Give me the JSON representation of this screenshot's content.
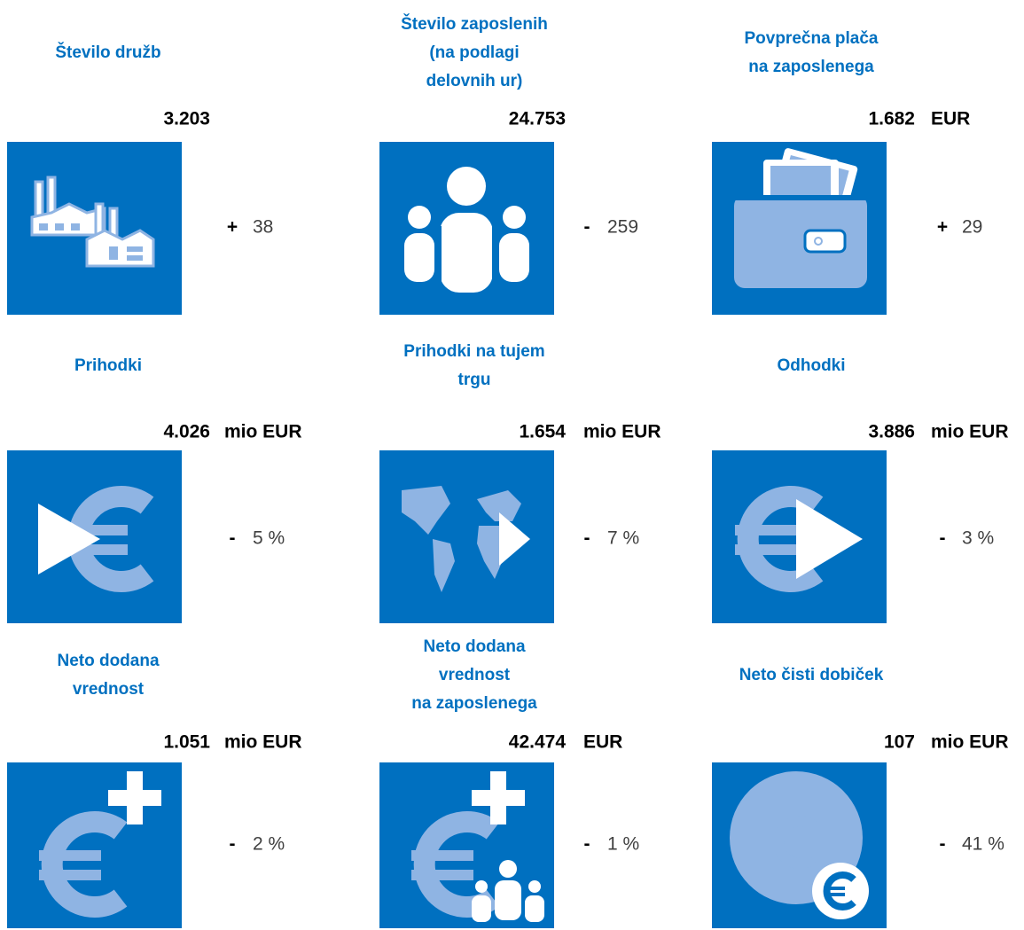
{
  "tiles": [
    {
      "title": [
        "Število družb"
      ],
      "value": "3.203",
      "sign": "+",
      "change": "38"
    },
    {
      "title": [
        "Število zaposlenih",
        "(na podlagi",
        "delovnih ur)"
      ],
      "value": "24.753",
      "sign": "-",
      "change": "259"
    },
    {
      "title": [
        "Povprečna plača",
        "na zaposlenega"
      ],
      "value": "1.682",
      "unit": "EUR",
      "sign": "+",
      "change": "29"
    },
    {
      "title": [
        "Prihodki"
      ],
      "value": "4.026",
      "unit": "mio EUR",
      "sign": "-",
      "change": "5 %"
    },
    {
      "title": [
        "Prihodki na tujem",
        "trgu"
      ],
      "value": "1.654",
      "unit": "mio EUR",
      "sign": "-",
      "change": "7 %"
    },
    {
      "title": [
        "Odhodki"
      ],
      "value": "3.886",
      "unit": "mio EUR",
      "sign": "-",
      "change": "3 %"
    },
    {
      "title": [
        "Neto dodana",
        "vrednost"
      ],
      "value": "1.051",
      "unit": "mio EUR",
      "sign": "-",
      "change": "2 %"
    },
    {
      "title": [
        "Neto dodana",
        "vrednost",
        "na zaposlenega"
      ],
      "value": "42.474",
      "unit": "EUR",
      "sign": "-",
      "change": "1 %"
    },
    {
      "title": [
        "Neto čisti dobiček"
      ],
      "value": "107",
      "unit": "mio EUR",
      "sign": "-",
      "change": "41 %"
    }
  ]
}
